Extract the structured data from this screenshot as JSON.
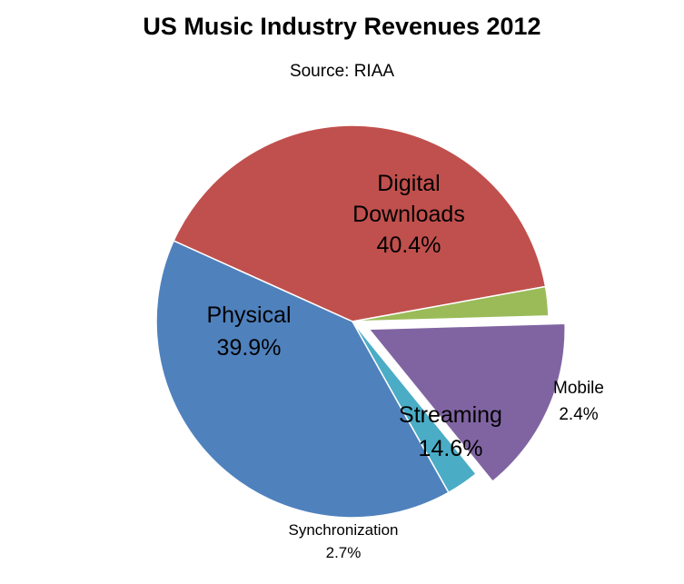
{
  "chart_data": {
    "type": "pie",
    "title": "US Music Industry Revenues 2012",
    "subtitle": "Source: RIAA",
    "slices": [
      {
        "label": "Digital Downloads",
        "value": 40.4,
        "value_label": "40.4%",
        "color": "#C0504D",
        "exploded": false
      },
      {
        "label": "Mobile",
        "value": 2.4,
        "value_label": "2.4%",
        "color": "#9BBB59",
        "exploded": false
      },
      {
        "label": "Streaming",
        "value": 14.6,
        "value_label": "14.6%",
        "color": "#8064A2",
        "exploded": true
      },
      {
        "label": "Synchronization",
        "value": 2.7,
        "value_label": "2.7%",
        "color": "#4BACC6",
        "exploded": false
      },
      {
        "label": "Physical",
        "value": 39.9,
        "value_label": "39.9%",
        "color": "#4F81BD",
        "exploded": false
      }
    ]
  }
}
